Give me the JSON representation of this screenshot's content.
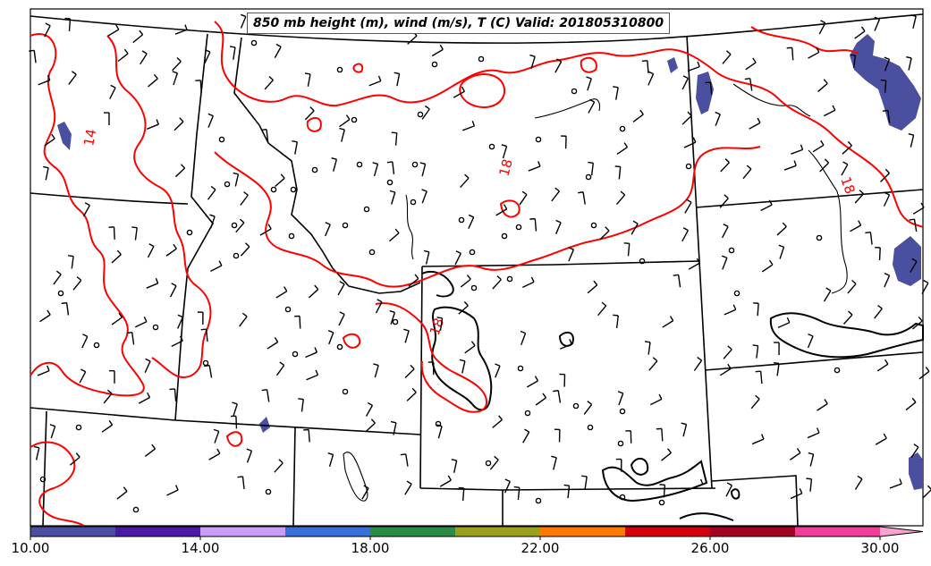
{
  "map": {
    "title": "850 mb height (m), wind (m/s), T (C) Valid: 201805310800",
    "contour_labels": [
      "14",
      "18",
      "18",
      "18"
    ],
    "contour_color": "#ff0000",
    "shading_color": "#4b4fa0"
  },
  "colorbar": {
    "tick_labels": [
      "10.00",
      "14.00",
      "18.00",
      "22.00",
      "26.00",
      "30.00"
    ],
    "colors": [
      "#4a4f9f",
      "#4b1aa3",
      "#c99ef6",
      "#3a6fd9",
      "#2c8a46",
      "#9aa01e",
      "#ff7a00",
      "#d5000d",
      "#a10420",
      "#ef3f9a",
      "#f7a3d0"
    ]
  }
}
